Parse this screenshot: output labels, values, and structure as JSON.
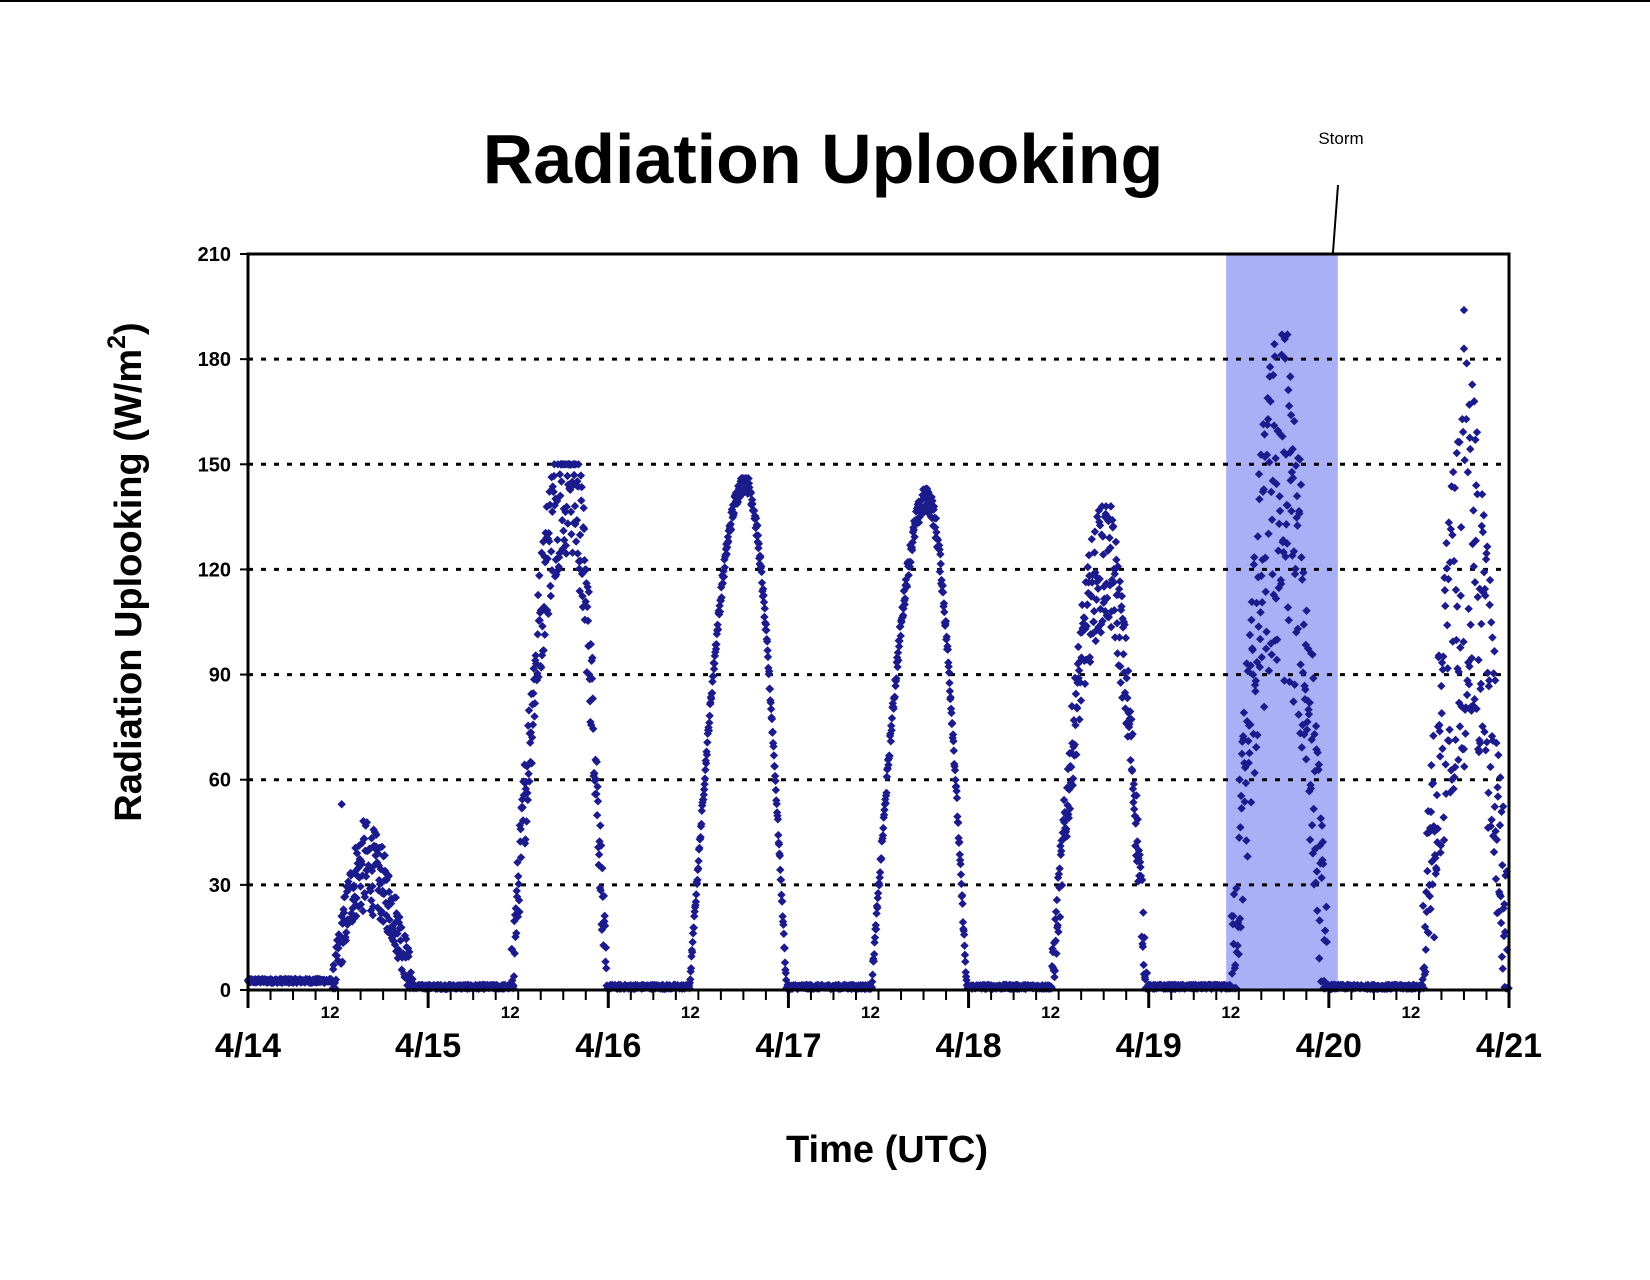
{
  "chart_data": {
    "type": "scatter",
    "title": "Radiation Uplooking",
    "xlabel": "Time (UTC)",
    "ylabel": "Radiation Uplooking (W/m",
    "ylabel_superscript": "2",
    "ylabel_suffix": ")",
    "x_unit": "days since 4/14 00 UTC",
    "xlim": [
      0,
      7
    ],
    "ylim": [
      0,
      210
    ],
    "yticks": [
      0,
      30,
      60,
      90,
      120,
      150,
      180,
      210
    ],
    "x_major_ticks": [
      {
        "x": 0,
        "label": "4/14"
      },
      {
        "x": 1,
        "label": "4/15"
      },
      {
        "x": 2,
        "label": "4/16"
      },
      {
        "x": 3,
        "label": "4/17"
      },
      {
        "x": 4,
        "label": "4/18"
      },
      {
        "x": 5,
        "label": "4/19"
      },
      {
        "x": 6,
        "label": "4/20"
      },
      {
        "x": 7,
        "label": "4/21"
      }
    ],
    "x_minor_labels": [
      {
        "x": 0.5,
        "label": "12"
      },
      {
        "x": 1.5,
        "label": "12"
      },
      {
        "x": 2.5,
        "label": "12"
      },
      {
        "x": 3.5,
        "label": "12"
      },
      {
        "x": 4.5,
        "label": "12"
      },
      {
        "x": 5.5,
        "label": "12"
      },
      {
        "x": 6.5,
        "label": "12"
      }
    ],
    "grid": "horizontal dotted",
    "series": [
      {
        "name": "Radiation Uplooking",
        "color": "#1b1b8c",
        "marker": "diamond",
        "days": [
          {
            "start": 0.47,
            "end": 0.92,
            "peak": 0.65,
            "peak_value": 35,
            "noise": 14,
            "max_value": 53
          },
          {
            "start": 1.46,
            "end": 1.99,
            "peak": 1.78,
            "peak_value": 148,
            "noise": 25,
            "max_value": 150
          },
          {
            "start": 2.45,
            "end": 2.99,
            "peak": 2.76,
            "peak_value": 145,
            "noise": 3,
            "max_value": 146
          },
          {
            "start": 3.46,
            "end": 3.99,
            "peak": 3.77,
            "peak_value": 140,
            "noise": 4,
            "max_value": 143
          },
          {
            "start": 4.46,
            "end": 4.99,
            "peak": 4.76,
            "peak_value": 122,
            "noise": 20,
            "max_value": 138
          },
          {
            "start": 5.46,
            "end": 5.99,
            "peak": 5.73,
            "peak_value": 140,
            "noise": 55,
            "max_value": 187
          },
          {
            "start": 6.52,
            "end": 7.0,
            "peak": 6.77,
            "peak_value": 120,
            "noise": 60,
            "max_value": 194
          }
        ]
      }
    ],
    "highlight_band": {
      "x_start": 5.43,
      "x_end": 6.05,
      "color": "#aab0f5"
    },
    "annotation": {
      "text": "Storm",
      "target_x": 6.0,
      "target_y": 210
    }
  }
}
